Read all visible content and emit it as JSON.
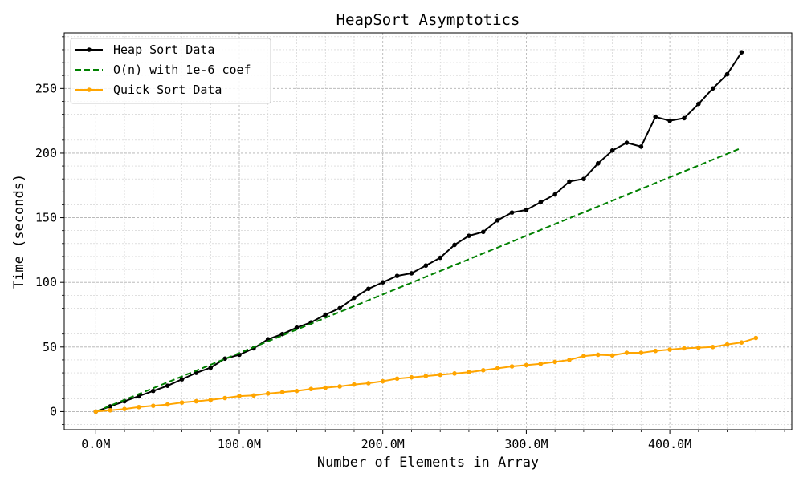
{
  "chart_data": {
    "type": "line",
    "title": "HeapSort Asymptotics",
    "xlabel": "Number of Elements in Array",
    "ylabel": "Time (seconds)",
    "xlim": [
      -22,
      485
    ],
    "ylim": [
      -14,
      293
    ],
    "x_ticks": [
      0,
      100,
      200,
      300,
      400
    ],
    "x_tick_labels": [
      "0.0M",
      "100.0M",
      "200.0M",
      "300.0M",
      "400.0M"
    ],
    "y_ticks": [
      0,
      50,
      100,
      150,
      200,
      250
    ],
    "y_tick_labels": [
      "0",
      "50",
      "100",
      "150",
      "200",
      "250"
    ],
    "x_unit_note": "x values in millions of elements",
    "grid": "on (major and minor)",
    "legend_position": "upper left",
    "series": [
      {
        "name": "Heap Sort Data",
        "color": "#000000",
        "style": "solid",
        "marker": "dot",
        "x": [
          0,
          10,
          20,
          30,
          40,
          50,
          60,
          70,
          80,
          90,
          100,
          110,
          120,
          130,
          140,
          150,
          160,
          170,
          180,
          190,
          200,
          210,
          220,
          230,
          240,
          250,
          260,
          270,
          280,
          290,
          300,
          310,
          320,
          330,
          340,
          350,
          360,
          370,
          380,
          390,
          400,
          410,
          420,
          430,
          440,
          450
        ],
        "y": [
          0,
          4,
          8,
          12,
          16,
          20,
          25,
          30,
          34,
          41,
          44,
          49,
          56,
          60,
          65,
          69,
          75,
          80,
          88,
          95,
          100,
          105,
          107,
          113,
          119,
          129,
          136,
          139,
          148,
          154,
          156,
          162,
          168,
          178,
          180,
          192,
          202,
          208,
          205,
          228,
          225,
          227,
          238,
          250,
          261,
          278
        ]
      },
      {
        "name": "O(n) with 1e-6 coef",
        "color": "#008000",
        "style": "dashed",
        "marker": "none",
        "x": [
          0,
          450
        ],
        "y": [
          0,
          204
        ]
      },
      {
        "name": "Quick Sort Data",
        "color": "#ffa500",
        "style": "solid",
        "marker": "dot",
        "x": [
          0,
          10,
          20,
          30,
          40,
          50,
          60,
          70,
          80,
          90,
          100,
          110,
          120,
          130,
          140,
          150,
          160,
          170,
          180,
          190,
          200,
          210,
          220,
          230,
          240,
          250,
          260,
          270,
          280,
          290,
          300,
          310,
          320,
          330,
          340,
          350,
          360,
          370,
          380,
          390,
          400,
          410,
          420,
          430,
          440,
          450,
          460
        ],
        "y": [
          0,
          1,
          2,
          3.5,
          4.5,
          5.5,
          7,
          8,
          9,
          10.5,
          12,
          12.5,
          14,
          15,
          16,
          17.5,
          18.5,
          19.5,
          21,
          22,
          23.5,
          25.5,
          26.5,
          27.5,
          28.5,
          29.5,
          30.5,
          32,
          33.5,
          35,
          36,
          37,
          38.5,
          40,
          43,
          44,
          43.5,
          45.5,
          45.5,
          47,
          48,
          49,
          49.5,
          50,
          52,
          53.5,
          57
        ]
      }
    ]
  }
}
